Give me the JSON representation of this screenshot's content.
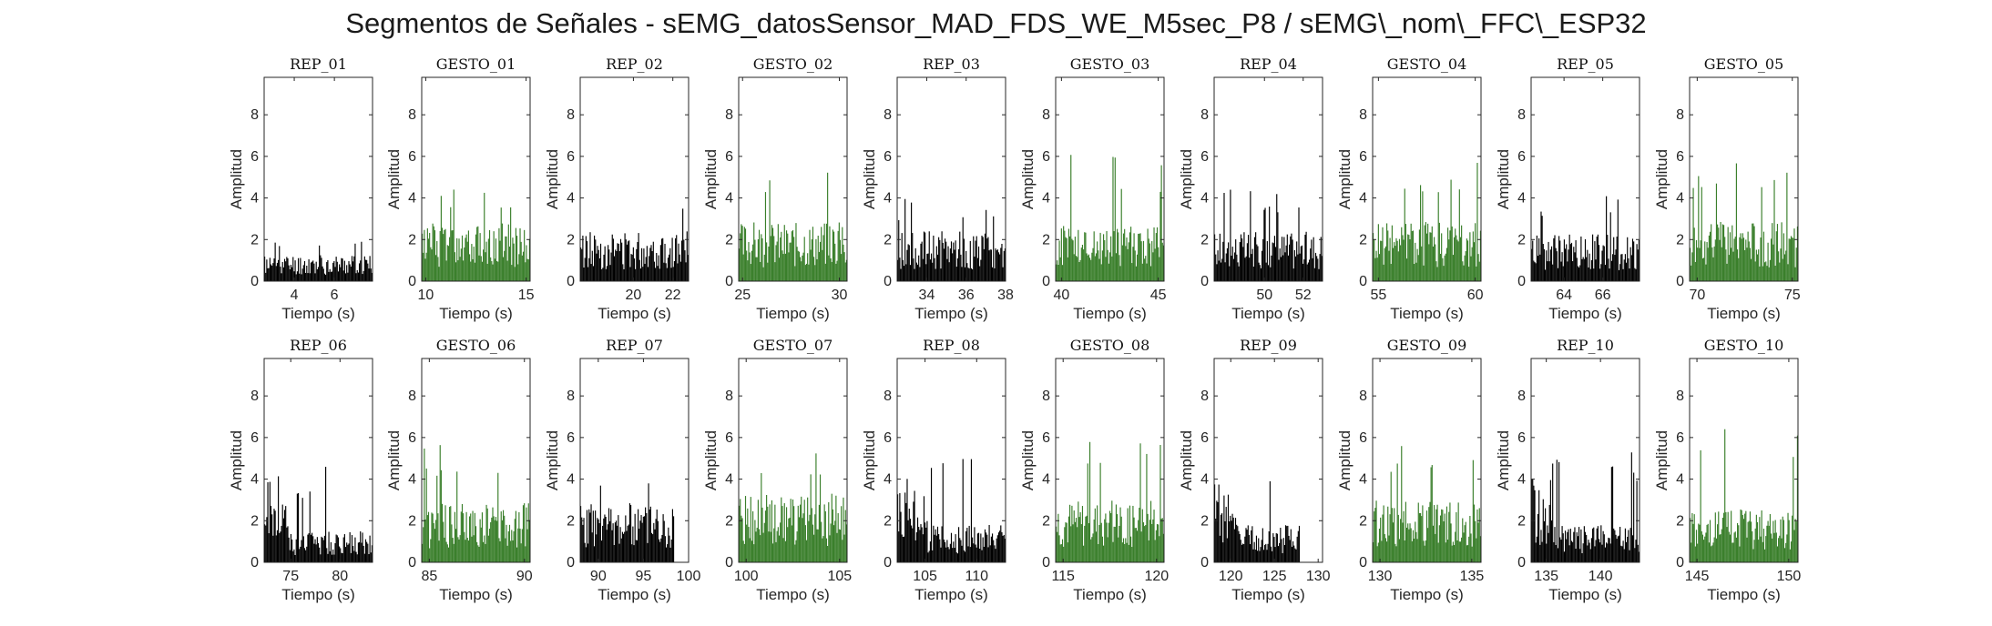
{
  "figure": {
    "title": "Segmentos de Señales - sEMG_datosSensor_MAD_FDS_WE_M5sec_P8 / sEMG\\_nom\\_FFC\\_ESP32"
  },
  "colors": {
    "rep": "#000000",
    "gesto": "#3a7f2b",
    "axis": "#262626"
  },
  "chart_data": [
    {
      "type": "bar",
      "title": "REP_01",
      "xlabel": "Tiempo (s)",
      "ylabel": "Amplitud",
      "xlim": [
        2.5,
        7.9
      ],
      "ylim": [
        0,
        9.8
      ],
      "xticks": [
        4,
        6
      ],
      "yticks": [
        0,
        2,
        4,
        6,
        8
      ],
      "color": "rep",
      "x_range": [
        2.5,
        7.9
      ],
      "base": 0.85,
      "spread": 0.6,
      "peak": 2.3,
      "seed": 11
    },
    {
      "type": "bar",
      "title": "GESTO_01",
      "xlabel": "Tiempo (s)",
      "ylabel": "Amplitud",
      "xlim": [
        9.8,
        15.2
      ],
      "ylim": [
        0,
        9.8
      ],
      "xticks": [
        10,
        15
      ],
      "yticks": [
        0,
        2,
        4,
        6,
        8
      ],
      "color": "gesto",
      "x_range": [
        9.8,
        15.2
      ],
      "base": 1.9,
      "spread": 1.1,
      "peak": 4.7,
      "seed": 12
    },
    {
      "type": "bar",
      "title": "REP_02",
      "xlabel": "Tiempo (s)",
      "ylabel": "Amplitud",
      "xlim": [
        17.3,
        22.8
      ],
      "ylim": [
        0,
        9.8
      ],
      "xticks": [
        20,
        22
      ],
      "yticks": [
        0,
        2,
        4,
        6,
        8
      ],
      "color": "rep",
      "x_range": [
        17.3,
        22.8
      ],
      "base": 1.6,
      "spread": 0.9,
      "peak": 3.8,
      "seed": 13
    },
    {
      "type": "bar",
      "title": "GESTO_02",
      "xlabel": "Tiempo (s)",
      "ylabel": "Amplitud",
      "xlim": [
        24.8,
        30.4
      ],
      "ylim": [
        0,
        9.8
      ],
      "xticks": [
        25,
        30
      ],
      "yticks": [
        0,
        2,
        4,
        6,
        8
      ],
      "color": "gesto",
      "x_range": [
        24.8,
        30.4
      ],
      "base": 1.9,
      "spread": 1.1,
      "peak": 5.6,
      "seed": 14
    },
    {
      "type": "bar",
      "title": "REP_03",
      "xlabel": "Tiempo (s)",
      "ylabel": "Amplitud",
      "xlim": [
        32.5,
        38
      ],
      "ylim": [
        0,
        9.8
      ],
      "xticks": [
        34,
        36,
        38
      ],
      "yticks": [
        0,
        2,
        4,
        6,
        8
      ],
      "color": "rep",
      "x_range": [
        32.5,
        38
      ],
      "base": 1.6,
      "spread": 1.0,
      "peak": 4.0,
      "seed": 15
    },
    {
      "type": "bar",
      "title": "GESTO_03",
      "xlabel": "Tiempo (s)",
      "ylabel": "Amplitud",
      "xlim": [
        39.7,
        45.3
      ],
      "ylim": [
        0,
        9.8
      ],
      "xticks": [
        40,
        45
      ],
      "yticks": [
        0,
        2,
        4,
        6,
        8
      ],
      "color": "gesto",
      "x_range": [
        39.7,
        45.3
      ],
      "base": 1.8,
      "spread": 1.2,
      "peak": 6.1,
      "seed": 16
    },
    {
      "type": "bar",
      "title": "REP_04",
      "xlabel": "Tiempo (s)",
      "ylabel": "Amplitud",
      "xlim": [
        47.4,
        53
      ],
      "ylim": [
        0,
        9.8
      ],
      "xticks": [
        50,
        52
      ],
      "yticks": [
        0,
        2,
        4,
        6,
        8
      ],
      "color": "rep",
      "x_range": [
        47.4,
        53
      ],
      "base": 1.6,
      "spread": 1.0,
      "peak": 4.4,
      "seed": 17
    },
    {
      "type": "bar",
      "title": "GESTO_04",
      "xlabel": "Tiempo (s)",
      "ylabel": "Amplitud",
      "xlim": [
        54.7,
        60.3
      ],
      "ylim": [
        0,
        9.8
      ],
      "xticks": [
        55,
        60
      ],
      "yticks": [
        0,
        2,
        4,
        6,
        8
      ],
      "color": "gesto",
      "x_range": [
        54.7,
        60.3
      ],
      "base": 1.9,
      "spread": 1.3,
      "peak": 5.8,
      "seed": 18
    },
    {
      "type": "bar",
      "title": "REP_05",
      "xlabel": "Tiempo (s)",
      "ylabel": "Amplitud",
      "xlim": [
        62.3,
        67.9
      ],
      "ylim": [
        0,
        9.8
      ],
      "xticks": [
        64,
        66
      ],
      "yticks": [
        0,
        2,
        4,
        6,
        8
      ],
      "color": "rep",
      "x_range": [
        62.3,
        67.9
      ],
      "base": 1.5,
      "spread": 1.0,
      "peak": 4.3,
      "seed": 19
    },
    {
      "type": "bar",
      "title": "GESTO_05",
      "xlabel": "Tiempo (s)",
      "ylabel": "Amplitud",
      "xlim": [
        69.6,
        75.3
      ],
      "ylim": [
        0,
        9.8
      ],
      "xticks": [
        70,
        75
      ],
      "yticks": [
        0,
        2,
        4,
        6,
        8
      ],
      "color": "gesto",
      "x_range": [
        69.6,
        75.3
      ],
      "base": 1.9,
      "spread": 1.2,
      "peak": 6.0,
      "seed": 20
    },
    {
      "type": "bar",
      "title": "REP_06",
      "xlabel": "Tiempo (s)",
      "ylabel": "Amplitud",
      "xlim": [
        72.3,
        83.3
      ],
      "ylim": [
        0,
        9.8
      ],
      "xticks": [
        75,
        80
      ],
      "yticks": [
        0,
        2,
        4,
        6,
        8
      ],
      "color": "rep",
      "x_range": [
        72.3,
        83.3
      ],
      "base": 1.0,
      "spread": 0.6,
      "peak": 4.8,
      "onset": 2.8,
      "onset_len": 0.22,
      "seed": 21
    },
    {
      "type": "bar",
      "title": "GESTO_06",
      "xlabel": "Tiempo (s)",
      "ylabel": "Amplitud",
      "xlim": [
        84.6,
        90.3
      ],
      "ylim": [
        0,
        9.8
      ],
      "xticks": [
        85,
        90
      ],
      "yticks": [
        0,
        2,
        4,
        6,
        8
      ],
      "color": "gesto",
      "x_range": [
        84.6,
        90.3
      ],
      "base": 1.9,
      "spread": 1.2,
      "peak": 5.8,
      "seed": 22
    },
    {
      "type": "bar",
      "title": "REP_07",
      "xlabel": "Tiempo (s)",
      "ylabel": "Amplitud",
      "xlim": [
        88,
        100
      ],
      "ylim": [
        0,
        9.8
      ],
      "xticks": [
        90,
        95,
        100
      ],
      "yticks": [
        0,
        2,
        4,
        6,
        8
      ],
      "color": "rep",
      "x_range": [
        88,
        98.4
      ],
      "base": 1.9,
      "spread": 1.1,
      "peak": 4.9,
      "seed": 23
    },
    {
      "type": "bar",
      "title": "GESTO_07",
      "xlabel": "Tiempo (s)",
      "ylabel": "Amplitud",
      "xlim": [
        99.6,
        105.4
      ],
      "ylim": [
        0,
        9.8
      ],
      "xticks": [
        100,
        105
      ],
      "yticks": [
        0,
        2,
        4,
        6,
        8
      ],
      "color": "gesto",
      "x_range": [
        99.6,
        105.4
      ],
      "base": 2.2,
      "spread": 1.2,
      "peak": 5.6,
      "seed": 24
    },
    {
      "type": "bar",
      "title": "REP_08",
      "xlabel": "Tiempo (s)",
      "ylabel": "Amplitud",
      "xlim": [
        102.3,
        112.8
      ],
      "ylim": [
        0,
        9.8
      ],
      "xticks": [
        105,
        110
      ],
      "yticks": [
        0,
        2,
        4,
        6,
        8
      ],
      "color": "rep",
      "x_range": [
        102.3,
        112.8
      ],
      "base": 1.2,
      "spread": 0.6,
      "peak": 5.1,
      "onset": 2.6,
      "onset_len": 0.28,
      "seed": 25
    },
    {
      "type": "bar",
      "title": "GESTO_08",
      "xlabel": "Tiempo (s)",
      "ylabel": "Amplitud",
      "xlim": [
        114.6,
        120.4
      ],
      "ylim": [
        0,
        9.8
      ],
      "xticks": [
        115,
        120
      ],
      "yticks": [
        0,
        2,
        4,
        6,
        8
      ],
      "color": "gesto",
      "x_range": [
        114.6,
        120.4
      ],
      "base": 2.0,
      "spread": 1.1,
      "peak": 6.0,
      "seed": 26
    },
    {
      "type": "bar",
      "title": "REP_09",
      "xlabel": "Tiempo (s)",
      "ylabel": "Amplitud",
      "xlim": [
        118.1,
        130.5
      ],
      "ylim": [
        0,
        9.8
      ],
      "xticks": [
        120,
        125,
        130
      ],
      "yticks": [
        0,
        2,
        4,
        6,
        8
      ],
      "color": "rep",
      "x_range": [
        118.1,
        127.9
      ],
      "base": 1.2,
      "spread": 0.6,
      "peak": 4.0,
      "onset": 2.3,
      "onset_len": 0.26,
      "seed": 27
    },
    {
      "type": "bar",
      "title": "GESTO_09",
      "xlabel": "Tiempo (s)",
      "ylabel": "Amplitud",
      "xlim": [
        129.6,
        135.5
      ],
      "ylim": [
        0,
        9.8
      ],
      "xticks": [
        130,
        135
      ],
      "yticks": [
        0,
        2,
        4,
        6,
        8
      ],
      "color": "gesto",
      "x_range": [
        129.6,
        135.5
      ],
      "base": 2.0,
      "spread": 1.1,
      "peak": 5.7,
      "seed": 28
    },
    {
      "type": "bar",
      "title": "REP_10",
      "xlabel": "Tiempo (s)",
      "ylabel": "Amplitud",
      "xlim": [
        133.6,
        143.6
      ],
      "ylim": [
        0,
        9.8
      ],
      "xticks": [
        135,
        140
      ],
      "yticks": [
        0,
        2,
        4,
        6,
        8
      ],
      "color": "rep",
      "x_range": [
        133.6,
        143.6
      ],
      "base": 1.2,
      "spread": 0.6,
      "peak": 5.4,
      "onset": 2.3,
      "onset_len": 0.2,
      "seed": 29
    },
    {
      "type": "bar",
      "title": "GESTO_10",
      "xlabel": "Tiempo (s)",
      "ylabel": "Amplitud",
      "xlim": [
        144.6,
        150.5
      ],
      "ylim": [
        0,
        9.8
      ],
      "xticks": [
        145,
        150
      ],
      "yticks": [
        0,
        2,
        4,
        6,
        8
      ],
      "color": "gesto",
      "x_range": [
        144.6,
        150.5
      ],
      "base": 1.7,
      "spread": 1.1,
      "peak": 6.7,
      "onset": 1.0,
      "onset_len": 0.15,
      "seed": 30
    }
  ]
}
